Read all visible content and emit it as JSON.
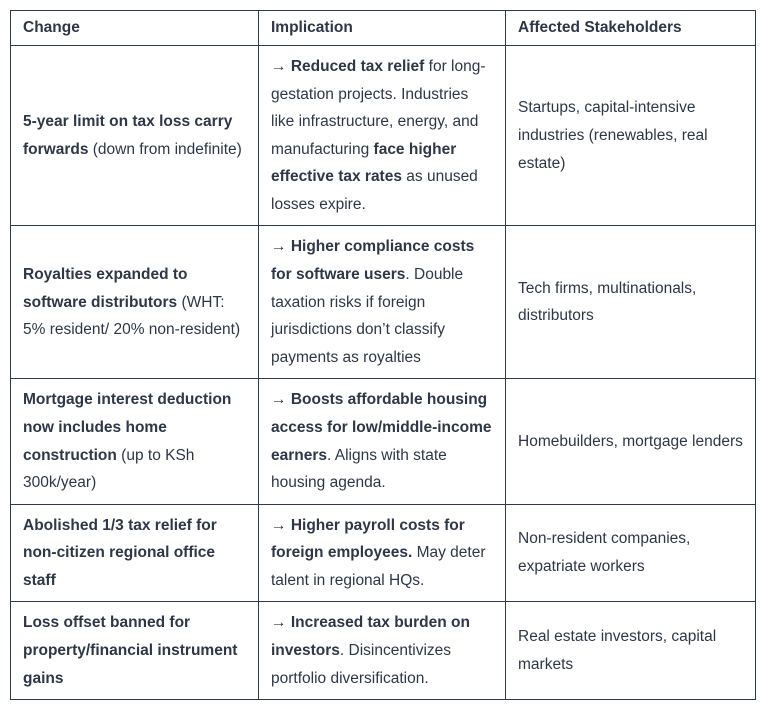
{
  "colors": {
    "text": "#2d3748",
    "border": "#2d3b4d",
    "background": "#ffffff"
  },
  "table": {
    "columns": [
      {
        "label": "Change"
      },
      {
        "label": "Implication"
      },
      {
        "label": "Affected Stakeholders"
      }
    ],
    "rows": [
      {
        "change_segments": [
          {
            "text": "5-year limit on tax loss carry forwards",
            "bold": true
          },
          {
            "text": " (down from indefinite)",
            "bold": false
          }
        ],
        "implication_segments": [
          {
            "text": "→ ",
            "bold": false
          },
          {
            "text": "Reduced tax relief",
            "bold": true
          },
          {
            "text": " for long-gestation projects. Industries like infrastructure, energy, and manufacturing ",
            "bold": false
          },
          {
            "text": "face higher effective tax rates",
            "bold": true
          },
          {
            "text": " as unused losses expire.",
            "bold": false
          }
        ],
        "stakeholders": "Startups, capital-intensive industries (renewables, real estate)"
      },
      {
        "change_segments": [
          {
            "text": "Royalties expanded to software distributors",
            "bold": true
          },
          {
            "text": " (WHT: 5% resident/ 20% non-resident)",
            "bold": false
          }
        ],
        "implication_segments": [
          {
            "text": "→ ",
            "bold": false
          },
          {
            "text": "Higher compliance costs for software users",
            "bold": true
          },
          {
            "text": ". Double taxation risks if foreign jurisdictions don’t classify payments as royalties",
            "bold": false
          }
        ],
        "stakeholders": "Tech firms, multinationals, distributors"
      },
      {
        "change_segments": [
          {
            "text": "Mortgage interest deduction now includes home construction",
            "bold": true
          },
          {
            "text": " (up to KSh 300k/year)",
            "bold": false
          }
        ],
        "implication_segments": [
          {
            "text": "→ ",
            "bold": false
          },
          {
            "text": "Boosts affordable housing access for low/middle-income earners",
            "bold": true
          },
          {
            "text": ". Aligns with state housing agenda.",
            "bold": false
          }
        ],
        "stakeholders": "Homebuilders, mortgage lenders"
      },
      {
        "change_segments": [
          {
            "text": "Abolished 1/3 tax relief for non-citizen regional office staff",
            "bold": true
          }
        ],
        "implication_segments": [
          {
            "text": "→ ",
            "bold": false
          },
          {
            "text": "Higher payroll costs for foreign employees.",
            "bold": true
          },
          {
            "text": " May deter talent in regional HQs.",
            "bold": false
          }
        ],
        "stakeholders": "Non-resident companies, expatriate workers"
      },
      {
        "change_segments": [
          {
            "text": "Loss offset banned for property/financial instrument gains",
            "bold": true
          }
        ],
        "implication_segments": [
          {
            "text": "→ ",
            "bold": false
          },
          {
            "text": "Increased tax burden on investors",
            "bold": true
          },
          {
            "text": ". Disincentivizes portfolio diversification.",
            "bold": false
          }
        ],
        "stakeholders": "Real estate investors, capital markets"
      }
    ]
  }
}
